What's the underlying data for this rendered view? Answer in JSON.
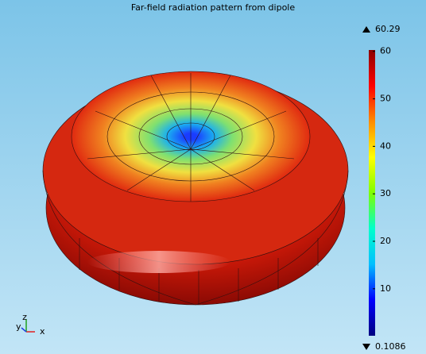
{
  "chart_data": {
    "type": "surface3d",
    "title": "Far-field radiation pattern from dipole",
    "colorbar": {
      "lim": [
        0.1086,
        60.29
      ],
      "ticks": [
        10,
        20,
        30,
        40,
        50,
        60
      ],
      "colormap": [
        "#00007f",
        "#0000ff",
        "#00bfff",
        "#00ffcc",
        "#7fff00",
        "#ffff00",
        "#ff8c00",
        "#ff0000",
        "#8b0000"
      ]
    },
    "max_value": 60.29,
    "min_value": 0.1086,
    "axes": [
      "x",
      "y",
      "z"
    ]
  }
}
